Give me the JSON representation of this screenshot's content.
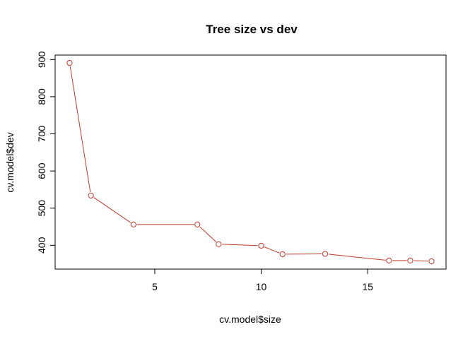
{
  "chart_data": {
    "type": "line",
    "title": "Tree size vs dev",
    "xlabel": "cv.model$size",
    "ylabel": "cv.model$dev",
    "x": [
      1,
      2,
      4,
      7,
      8,
      10,
      11,
      13,
      16,
      17,
      18
    ],
    "y": [
      891,
      534,
      456,
      456,
      403,
      399,
      376,
      377,
      359,
      359,
      357
    ],
    "xlim": [
      0.32,
      18.68
    ],
    "ylim": [
      336,
      912
    ],
    "xticks": [
      5,
      10,
      15
    ],
    "yticks": [
      400,
      500,
      600,
      700,
      800,
      900
    ],
    "grid": false,
    "color": "#c0392b"
  }
}
